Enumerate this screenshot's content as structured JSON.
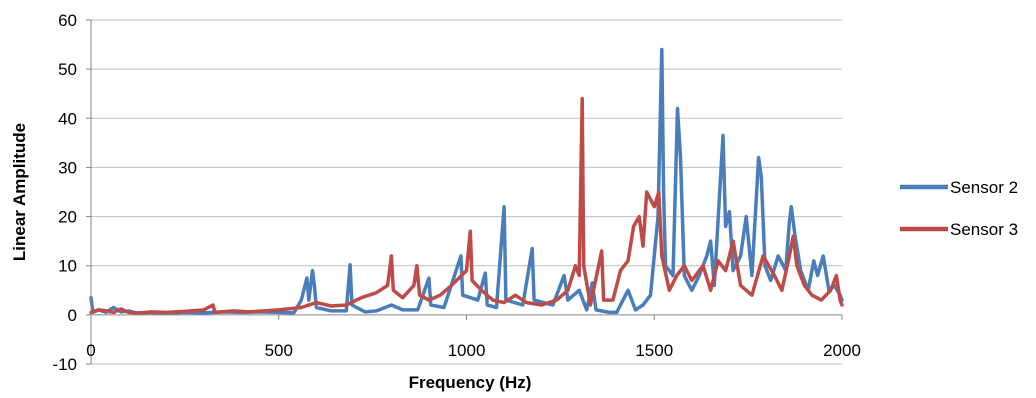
{
  "chart_data": {
    "type": "line",
    "title": "",
    "xlabel": "Frequency (Hz)",
    "ylabel": "Linear Amplitude",
    "xlim": [
      0,
      2000
    ],
    "ylim": [
      -10,
      60
    ],
    "x_ticks": [
      "0",
      "500",
      "1000",
      "1500",
      "2000"
    ],
    "y_ticks": [
      "-10",
      "0",
      "10",
      "20",
      "30",
      "40",
      "50",
      "60"
    ],
    "grid": true,
    "legend_position": "right",
    "series": [
      {
        "name": "Sensor 2",
        "color": "#4a7ebb",
        "points": [
          [
            0,
            3.5
          ],
          [
            5,
            0.5
          ],
          [
            20,
            1.0
          ],
          [
            40,
            0.5
          ],
          [
            60,
            1.5
          ],
          [
            80,
            0.6
          ],
          [
            100,
            0.8
          ],
          [
            120,
            0.4
          ],
          [
            150,
            0.5
          ],
          [
            200,
            0.3
          ],
          [
            250,
            0.5
          ],
          [
            300,
            0.4
          ],
          [
            350,
            0.6
          ],
          [
            400,
            0.5
          ],
          [
            450,
            0.6
          ],
          [
            500,
            0.5
          ],
          [
            540,
            0.4
          ],
          [
            560,
            3.0
          ],
          [
            575,
            7.5
          ],
          [
            580,
            3.0
          ],
          [
            590,
            9.0
          ],
          [
            595,
            6.0
          ],
          [
            600,
            1.5
          ],
          [
            640,
            0.8
          ],
          [
            680,
            0.8
          ],
          [
            690,
            10.2
          ],
          [
            695,
            2.0
          ],
          [
            730,
            0.6
          ],
          [
            760,
            0.8
          ],
          [
            800,
            2.0
          ],
          [
            830,
            1.0
          ],
          [
            870,
            1.0
          ],
          [
            900,
            7.5
          ],
          [
            905,
            2.0
          ],
          [
            940,
            1.5
          ],
          [
            985,
            12.0
          ],
          [
            990,
            4.0
          ],
          [
            1030,
            3.0
          ],
          [
            1050,
            8.5
          ],
          [
            1055,
            2.0
          ],
          [
            1080,
            1.5
          ],
          [
            1100,
            22.0
          ],
          [
            1105,
            3.0
          ],
          [
            1150,
            2.0
          ],
          [
            1175,
            13.5
          ],
          [
            1180,
            3.0
          ],
          [
            1230,
            2.0
          ],
          [
            1260,
            8.0
          ],
          [
            1270,
            3.0
          ],
          [
            1300,
            5.0
          ],
          [
            1320,
            1.0
          ],
          [
            1335,
            6.5
          ],
          [
            1345,
            1.0
          ],
          [
            1380,
            0.5
          ],
          [
            1400,
            0.5
          ],
          [
            1430,
            5.0
          ],
          [
            1450,
            1.0
          ],
          [
            1470,
            2.0
          ],
          [
            1490,
            4.0
          ],
          [
            1510,
            20.0
          ],
          [
            1520,
            54.0
          ],
          [
            1525,
            25.0
          ],
          [
            1530,
            10.0
          ],
          [
            1550,
            8.0
          ],
          [
            1562,
            42.0
          ],
          [
            1570,
            32.0
          ],
          [
            1580,
            8.0
          ],
          [
            1600,
            5.0
          ],
          [
            1620,
            8.0
          ],
          [
            1640,
            12.0
          ],
          [
            1650,
            15.0
          ],
          [
            1660,
            6.0
          ],
          [
            1683,
            36.5
          ],
          [
            1690,
            18.0
          ],
          [
            1700,
            21.0
          ],
          [
            1710,
            9.0
          ],
          [
            1730,
            12.0
          ],
          [
            1745,
            20.0
          ],
          [
            1760,
            8.0
          ],
          [
            1778,
            32.0
          ],
          [
            1785,
            28.0
          ],
          [
            1795,
            10.0
          ],
          [
            1810,
            7.0
          ],
          [
            1830,
            12.0
          ],
          [
            1850,
            9.0
          ],
          [
            1860,
            19.0
          ],
          [
            1865,
            22.0
          ],
          [
            1875,
            16.0
          ],
          [
            1890,
            9.0
          ],
          [
            1910,
            5.0
          ],
          [
            1925,
            11.0
          ],
          [
            1935,
            8.0
          ],
          [
            1950,
            12.0
          ],
          [
            1965,
            5.0
          ],
          [
            1980,
            6.0
          ],
          [
            1995,
            4.0
          ],
          [
            2000,
            3.0
          ]
        ]
      },
      {
        "name": "Sensor 3",
        "color": "#be4b48",
        "points": [
          [
            0,
            0.5
          ],
          [
            20,
            1.0
          ],
          [
            40,
            0.8
          ],
          [
            60,
            0.5
          ],
          [
            80,
            1.2
          ],
          [
            100,
            0.5
          ],
          [
            130,
            0.3
          ],
          [
            160,
            0.6
          ],
          [
            200,
            0.5
          ],
          [
            250,
            0.7
          ],
          [
            300,
            1.0
          ],
          [
            325,
            2.0
          ],
          [
            330,
            0.5
          ],
          [
            380,
            0.8
          ],
          [
            420,
            0.6
          ],
          [
            460,
            0.8
          ],
          [
            500,
            1.0
          ],
          [
            560,
            1.5
          ],
          [
            600,
            2.5
          ],
          [
            640,
            1.8
          ],
          [
            680,
            2.0
          ],
          [
            720,
            3.5
          ],
          [
            760,
            4.5
          ],
          [
            790,
            6.0
          ],
          [
            800,
            12.0
          ],
          [
            805,
            5.0
          ],
          [
            830,
            3.5
          ],
          [
            860,
            6.0
          ],
          [
            868,
            10.0
          ],
          [
            875,
            4.0
          ],
          [
            900,
            3.0
          ],
          [
            930,
            4.0
          ],
          [
            960,
            6.0
          ],
          [
            1000,
            9.0
          ],
          [
            1010,
            17.0
          ],
          [
            1015,
            7.0
          ],
          [
            1040,
            5.0
          ],
          [
            1070,
            3.0
          ],
          [
            1100,
            2.5
          ],
          [
            1130,
            4.0
          ],
          [
            1160,
            2.5
          ],
          [
            1200,
            2.0
          ],
          [
            1240,
            3.0
          ],
          [
            1270,
            5.0
          ],
          [
            1290,
            10.0
          ],
          [
            1300,
            8.0
          ],
          [
            1308,
            44.0
          ],
          [
            1312,
            10.0
          ],
          [
            1330,
            2.0
          ],
          [
            1360,
            13.0
          ],
          [
            1365,
            3.0
          ],
          [
            1390,
            3.0
          ],
          [
            1410,
            9.0
          ],
          [
            1430,
            11.0
          ],
          [
            1445,
            18.0
          ],
          [
            1460,
            20.0
          ],
          [
            1470,
            14.0
          ],
          [
            1480,
            25.0
          ],
          [
            1500,
            22.0
          ],
          [
            1512,
            25.0
          ],
          [
            1520,
            12.0
          ],
          [
            1540,
            5.0
          ],
          [
            1560,
            8.0
          ],
          [
            1580,
            10.0
          ],
          [
            1600,
            7.0
          ],
          [
            1630,
            10.0
          ],
          [
            1650,
            5.0
          ],
          [
            1670,
            11.0
          ],
          [
            1690,
            9.0
          ],
          [
            1700,
            12.0
          ],
          [
            1710,
            15.0
          ],
          [
            1730,
            6.0
          ],
          [
            1760,
            4.0
          ],
          [
            1790,
            12.0
          ],
          [
            1820,
            8.0
          ],
          [
            1840,
            5.0
          ],
          [
            1860,
            12.0
          ],
          [
            1870,
            16.0
          ],
          [
            1880,
            10.0
          ],
          [
            1900,
            6.0
          ],
          [
            1920,
            4.0
          ],
          [
            1945,
            3.0
          ],
          [
            1970,
            5.0
          ],
          [
            1985,
            8.0
          ],
          [
            1995,
            3.0
          ],
          [
            2000,
            2.0
          ]
        ]
      }
    ]
  }
}
